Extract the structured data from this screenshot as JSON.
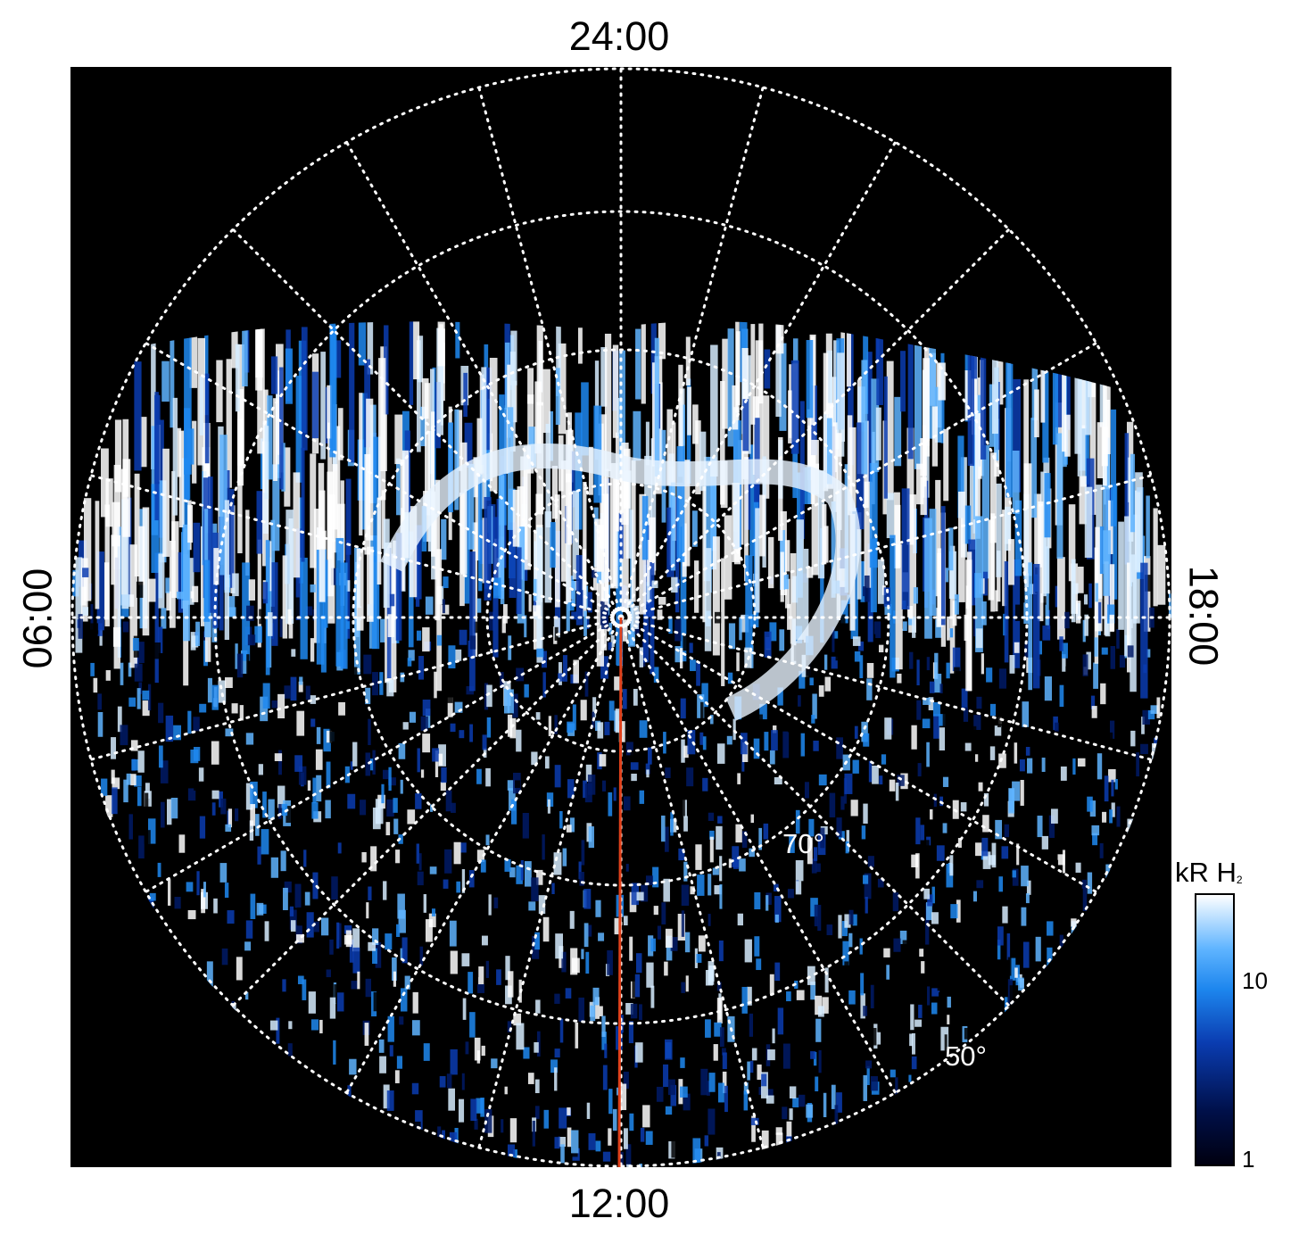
{
  "local_time_labels": {
    "top": "24:00",
    "bottom": "12:00",
    "left": "06:00",
    "right": "18:00"
  },
  "latitude_labels": {
    "inner": "70°",
    "outer": "50°"
  },
  "colorbar": {
    "unit": "kR H",
    "subscript": "2",
    "ticks": [
      "10",
      "1"
    ],
    "scale": "log"
  },
  "colors": {
    "background": "#000000",
    "grid": "#ffffff",
    "meridian_line": "#e0401a",
    "emission_low": "#001a66",
    "emission_mid": "#1e88f0",
    "emission_high": "#ffffff"
  }
}
